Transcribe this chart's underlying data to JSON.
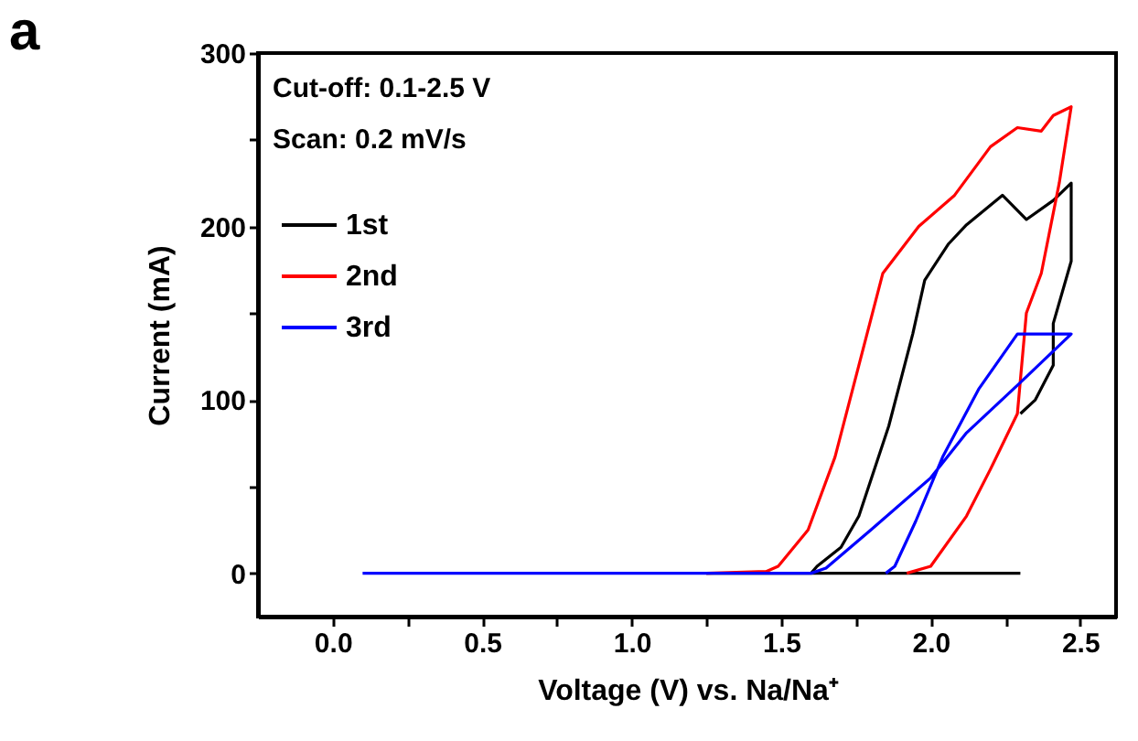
{
  "chart_data": {
    "type": "line",
    "xlabel": "Voltage (V) vs. Na/Na⁺",
    "ylabel": "Current (mA)",
    "annotations": [
      "a",
      "Cut-off: 0.1-2.5 V",
      "Scan: 0.2 mV/s"
    ],
    "xlim": [
      -0.25,
      2.62
    ],
    "ylim": [
      -25,
      300
    ],
    "xticks": [
      {
        "value": 0,
        "label": "0.0"
      },
      {
        "value": 0.25,
        "label": null
      },
      {
        "value": 0.5,
        "label": "0.5"
      },
      {
        "value": 0.75,
        "label": null
      },
      {
        "value": 1,
        "label": "1.0"
      },
      {
        "value": 1.25,
        "label": null
      },
      {
        "value": 1.5,
        "label": "1.5"
      },
      {
        "value": 1.75,
        "label": null
      },
      {
        "value": 2,
        "label": "2.0"
      },
      {
        "value": 2.25,
        "label": null
      },
      {
        "value": 2.5,
        "label": "2.5"
      }
    ],
    "yticks": [
      0,
      {
        "value": 50,
        "label": null
      },
      100,
      {
        "value": 150,
        "label": null
      },
      200,
      {
        "value": 250,
        "label": null
      },
      300
    ],
    "grid": false,
    "legend": "top left",
    "marker": "none",
    "line_style": "solid",
    "series": [
      {
        "name": "1st",
        "color": "#000000",
        "x": [
          2.3,
          1.25,
          1.6,
          1.62,
          1.7,
          1.76,
          1.86,
          1.94,
          1.98,
          2.06,
          2.12,
          2.24,
          2.32,
          2.41,
          2.47,
          2.47,
          2.41,
          2.41,
          2.35,
          2.3
        ],
        "values": [
          0,
          0,
          0,
          4,
          15,
          33,
          85,
          138,
          169,
          190,
          201,
          218,
          204,
          215,
          225,
          180,
          144,
          120,
          100,
          92
        ]
      },
      {
        "name": "2nd",
        "color": "#ff0000",
        "x": [
          1.25,
          1.45,
          1.49,
          1.59,
          1.68,
          1.76,
          1.84,
          1.96,
          2.08,
          2.2,
          2.29,
          2.37,
          2.41,
          2.47,
          2.43,
          2.37,
          2.32,
          2.29,
          2.2,
          2.12,
          2.0,
          1.92
        ],
        "values": [
          0,
          1,
          4,
          25,
          67,
          120,
          173,
          200,
          218,
          246,
          257,
          255,
          264,
          269,
          225,
          173,
          150,
          92,
          60,
          33,
          4,
          0
        ]
      },
      {
        "name": "3rd",
        "color": "#0000ff",
        "x": [
          0.1,
          1.6,
          1.65,
          1.8,
          2.0,
          2.12,
          2.3,
          2.47,
          2.29,
          2.16,
          2.04,
          1.95,
          1.88,
          1.85
        ],
        "values": [
          0,
          0,
          3,
          25,
          55,
          81,
          110,
          138,
          138,
          106,
          67,
          30,
          4,
          0
        ]
      }
    ]
  }
}
